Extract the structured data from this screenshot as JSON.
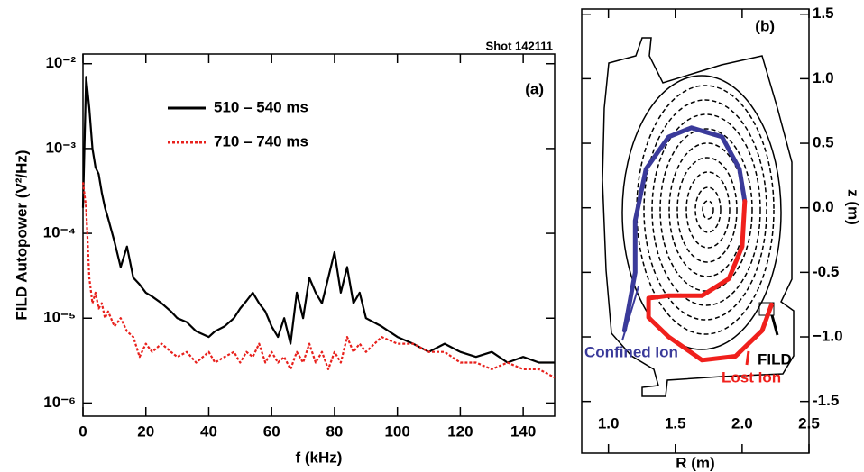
{
  "chart_data": [
    {
      "type": "line",
      "title": "Shot 142111",
      "panel_label": "(a)",
      "x_label": "f (kHz)",
      "y_label": "FILD Autopower (V²/Hz)",
      "ylog": true,
      "xlim": [
        0,
        150
      ],
      "xticks": [
        0,
        20,
        40,
        60,
        80,
        100,
        120,
        140
      ],
      "ylim": [
        7e-07,
        0.013
      ],
      "yticks": [
        {
          "value": 1e-06,
          "label": "10⁻⁶"
        },
        {
          "value": 1e-05,
          "label": "10⁻⁵"
        },
        {
          "value": 0.0001,
          "label": "10⁻⁴"
        },
        {
          "value": 0.001,
          "label": "10⁻³"
        },
        {
          "value": 0.01,
          "label": "10⁻²"
        }
      ],
      "x": [
        0,
        1,
        2,
        3,
        4,
        5,
        6,
        7,
        8,
        10,
        12,
        14,
        16,
        18,
        20,
        22,
        25,
        28,
        30,
        33,
        36,
        40,
        42,
        45,
        48,
        50,
        52,
        54,
        56,
        58,
        60,
        62,
        64,
        66,
        68,
        70,
        72,
        74,
        76,
        78,
        80,
        82,
        84,
        86,
        88,
        90,
        95,
        100,
        105,
        110,
        115,
        120,
        125,
        130,
        135,
        140,
        145,
        150
      ],
      "series": [
        {
          "name": "510 – 540 ms",
          "color": "#000000",
          "dash": "solid",
          "values": [
            0.0002,
            0.007,
            0.003,
            0.001,
            0.0006,
            0.0005,
            0.0003,
            0.0002,
            0.00015,
            8e-05,
            4e-05,
            7e-05,
            3e-05,
            2.5e-05,
            2e-05,
            1.8e-05,
            1.5e-05,
            1.2e-05,
            1e-05,
            9e-06,
            7e-06,
            6e-06,
            7e-06,
            8e-06,
            1e-05,
            1.3e-05,
            1.6e-05,
            2e-05,
            1.5e-05,
            1.2e-05,
            8e-06,
            6e-06,
            1e-05,
            5e-06,
            2e-05,
            1e-05,
            3e-05,
            2e-05,
            1.5e-05,
            3e-05,
            6e-05,
            2e-05,
            4e-05,
            1.5e-05,
            2e-05,
            1e-05,
            8e-06,
            6e-06,
            5e-06,
            4e-06,
            5e-06,
            4e-06,
            3.5e-06,
            4e-06,
            3e-06,
            3.5e-06,
            3e-06,
            3e-06
          ]
        },
        {
          "name": "710 – 740 ms",
          "color": "#e8201c",
          "dash": "dotted",
          "values": [
            0.0004,
            0.0002,
            3e-05,
            1.5e-05,
            2e-05,
            1.3e-05,
            1.5e-05,
            1e-05,
            1.2e-05,
            8e-06,
            1e-05,
            7e-06,
            6e-06,
            3.5e-06,
            5e-06,
            4e-06,
            5e-06,
            4e-06,
            3.5e-06,
            4e-06,
            3e-06,
            4e-06,
            3e-06,
            3.5e-06,
            4e-06,
            3e-06,
            4e-06,
            3.5e-06,
            5e-06,
            3e-06,
            4e-06,
            3e-06,
            3.5e-06,
            2.5e-06,
            4e-06,
            3e-06,
            5e-06,
            3e-06,
            4e-06,
            2.5e-06,
            4e-06,
            3e-06,
            6e-06,
            4e-06,
            5e-06,
            4e-06,
            6e-06,
            5e-06,
            5e-06,
            4e-06,
            4e-06,
            3e-06,
            3e-06,
            2.5e-06,
            3e-06,
            2.5e-06,
            2.5e-06,
            2e-06
          ]
        }
      ]
    },
    {
      "type": "orbit",
      "panel_label": "(b)",
      "x_label": "R (m)",
      "y_label": "z (m)",
      "y_axis_side": "right",
      "annotation": "FILD",
      "xlim": [
        0.8,
        2.5
      ],
      "xticks": [
        {
          "value": 1,
          "label": "1.0"
        },
        1.5,
        {
          "value": 2,
          "label": "2.0"
        },
        2.5
      ],
      "ylim": [
        -1.9,
        1.54
      ],
      "yticks": [
        1.5,
        {
          "value": 1,
          "label": "1.0"
        },
        0.5,
        {
          "value": 0,
          "label": "0.0"
        },
        -0.5,
        {
          "value": -1,
          "label": "−1.0"
        },
        -1.5
      ],
      "series": [
        {
          "name": "Confined Ion",
          "color": "#3a3a9a",
          "x": [
            1.12,
            1.2,
            1.2,
            1.28,
            1.45,
            1.62,
            1.85,
            1.98,
            2.02
          ],
          "values": [
            -0.95,
            -0.5,
            -0.1,
            0.3,
            0.55,
            0.62,
            0.55,
            0.3,
            0.05
          ]
        },
        {
          "name": "Lost Ion",
          "color": "#f0201c",
          "x": [
            2.02,
            2.0,
            1.9,
            1.7,
            1.45,
            1.3,
            1.3,
            1.45,
            1.7,
            1.95,
            2.15,
            2.22
          ],
          "values": [
            0.05,
            -0.3,
            -0.55,
            -0.68,
            -0.68,
            -0.7,
            -0.85,
            -1.0,
            -1.18,
            -1.15,
            -0.95,
            -0.75
          ]
        }
      ]
    }
  ]
}
